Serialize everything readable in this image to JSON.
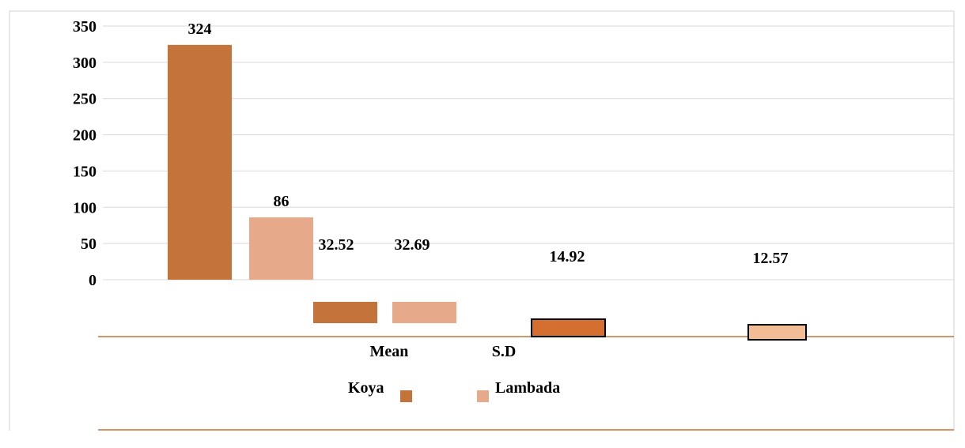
{
  "chart_data": {
    "type": "bar",
    "yticks": [
      "350",
      "300",
      "250",
      "200",
      "150",
      "100",
      "50",
      "0"
    ],
    "ylim": [
      0,
      350
    ],
    "grid": true,
    "categories": [
      "Mean",
      "S.D"
    ],
    "legend": {
      "placement": "bottom",
      "entries": [
        "Koya",
        "Lambada"
      ]
    },
    "series": [
      {
        "name": "Koya",
        "color": "#c4733a"
      },
      {
        "name": "Lambada",
        "color": "#e6a98a"
      }
    ],
    "bars": [
      {
        "series": "Koya",
        "value": 324,
        "label": "324"
      },
      {
        "series": "Lambada",
        "value": 86,
        "label": "86"
      }
    ],
    "category_values": [
      {
        "category": "Mean",
        "values": [
          32.52,
          32.69
        ],
        "labels": [
          "32.52",
          "32.69"
        ]
      },
      {
        "category": "S.D",
        "values": [
          14.92,
          12.57
        ],
        "labels": [
          "14.92",
          "12.57"
        ]
      }
    ]
  }
}
